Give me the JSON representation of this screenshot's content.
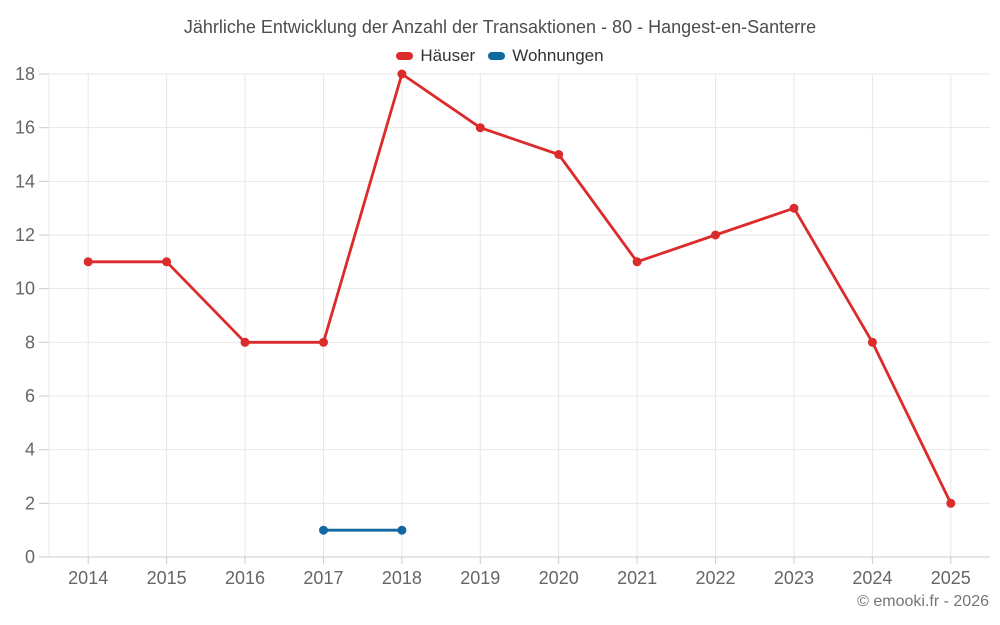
{
  "footer": {
    "text": "© emooki.fr - 2026"
  },
  "colors": {
    "grid": "#e7e7e7",
    "axis": "#cccccc",
    "axis_label": "#666666",
    "title_text": "#4d4d4d",
    "legend_text": "#333333",
    "footer_text": "#757575"
  },
  "chart_data": {
    "type": "line",
    "title": "Jährliche Entwicklung der Anzahl der Transaktionen - 80 - Hangest-en-Santerre",
    "categories": [
      "2014",
      "2015",
      "2016",
      "2017",
      "2018",
      "2019",
      "2020",
      "2021",
      "2022",
      "2023",
      "2024",
      "2025"
    ],
    "series": [
      {
        "name": "Häuser",
        "color": "#dc2b2b",
        "values": [
          11,
          11,
          8,
          8,
          18,
          16,
          15,
          11,
          12,
          13,
          8,
          2
        ]
      },
      {
        "name": "Wohnungen",
        "color": "#1269a2",
        "values": [
          null,
          null,
          null,
          1,
          1,
          null,
          null,
          null,
          null,
          null,
          null,
          null
        ]
      }
    ],
    "xlabel": "",
    "ylabel": "",
    "ylim": [
      0,
      18
    ],
    "ytick_step": 2,
    "grid": true,
    "legend_position": "top"
  }
}
